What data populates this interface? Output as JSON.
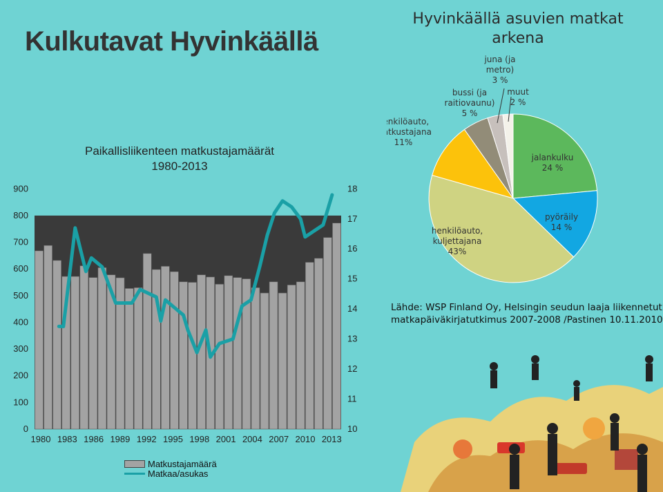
{
  "page": {
    "title": "Kulkutavat Hyvinkäällä",
    "source_lines": [
      "Lähde: WSP Finland Oy, Helsingin seudun laaja liikennetutkimus,",
      "matkapäiväkirjatutkimus 2007-2008 /Pastinen 10.11.2010"
    ]
  },
  "colors": {
    "background": "#6fd3d3",
    "plot_area": "#3a3a3a",
    "bar_fill": "#a3a3a3",
    "line": "#1aa0a6"
  },
  "chart_data": [
    {
      "type": "bar",
      "title_lines": [
        "Paikallisliikenteen matkustajamäärät",
        "1980-2013"
      ],
      "x_tick_labels": [
        "1980",
        "1983",
        "1986",
        "1989",
        "1992",
        "1995",
        "1998",
        "2001",
        "2004",
        "2007",
        "2010",
        "2013"
      ],
      "categories": [
        1980,
        1981,
        1982,
        1983,
        1984,
        1985,
        1986,
        1987,
        1988,
        1989,
        1990,
        1991,
        1992,
        1993,
        1994,
        1995,
        1996,
        1997,
        1998,
        1999,
        2000,
        2001,
        2002,
        2003,
        2004,
        2005,
        2006,
        2007,
        2008,
        2009,
        2010,
        2011,
        2012,
        2013
      ],
      "y_left_ticks": [
        0,
        100,
        200,
        300,
        400,
        500,
        600,
        700,
        800,
        900
      ],
      "y_right_ticks": [
        10,
        11,
        12,
        13,
        14,
        15,
        16,
        17,
        18
      ],
      "ylim_left": [
        0,
        900
      ],
      "ylim_right": [
        10,
        18
      ],
      "plot_top_value": 800,
      "series": [
        {
          "name": "Matkustajamäärä",
          "axis": "left",
          "values": [
            668,
            688,
            632,
            572,
            572,
            612,
            568,
            605,
            578,
            567,
            527,
            530,
            658,
            598,
            610,
            590,
            552,
            550,
            578,
            570,
            543,
            575,
            568,
            563,
            530,
            510,
            552,
            510,
            540,
            552,
            625,
            640,
            718,
            772
          ]
        },
        {
          "name": "Matkaa/asukas",
          "axis": "right",
          "x": [
            1982.2,
            1982.7,
            1984.0,
            1985.2,
            1985.8,
            1987.0,
            1988.0,
            1988.5,
            1990.3,
            1991.2,
            1993.0,
            1993.5,
            1994.0,
            1995.0,
            1996.0,
            1996.5,
            1997.5,
            1998.5,
            1999.0,
            2000.0,
            2001.5,
            2002.5,
            2003.5,
            2004.5,
            2005.3,
            2006.1,
            2007.0,
            2008.0,
            2009.0,
            2009.5,
            2010.5,
            2011.5,
            2012.5
          ],
          "y": [
            13.42,
            13.42,
            16.7,
            15.25,
            15.7,
            15.4,
            14.6,
            14.2,
            14.2,
            14.65,
            14.4,
            13.6,
            14.3,
            14.05,
            13.8,
            13.3,
            12.55,
            13.3,
            12.4,
            12.85,
            13.0,
            14.1,
            14.3,
            15.45,
            16.45,
            17.2,
            17.6,
            17.4,
            17.0,
            16.4,
            16.6,
            16.8,
            17.8
          ]
        }
      ],
      "legend": [
        "Matkustajamäärä",
        "Matkaa/asukas"
      ],
      "legend_position": "bottom-left"
    },
    {
      "type": "pie",
      "title_lines": [
        "Hyvinkäällä asuvien matkat",
        "arkena"
      ],
      "slices": [
        {
          "label_lines": [
            "jalankulku",
            "24 %"
          ],
          "value": 24,
          "color": "#5cb85c"
        },
        {
          "label_lines": [
            "pyöräily",
            "14 %"
          ],
          "value": 14,
          "color": "#12a7e2"
        },
        {
          "label_lines": [
            "henkilöauto,",
            "kuljettajana",
            "43%"
          ],
          "value": 43,
          "color": "#cfd382"
        },
        {
          "label_lines": [
            "henkilöauto,",
            "matkustajana",
            "11%"
          ],
          "value": 11,
          "color": "#fcc20b"
        },
        {
          "label_lines": [
            "bussi (ja",
            "raitiovaunu)",
            "5 %"
          ],
          "value": 5,
          "color": "#928c78"
        },
        {
          "label_lines": [
            "juna (ja",
            "metro)",
            "3 %"
          ],
          "value": 3,
          "color": "#c7c0bc"
        },
        {
          "label_lines": [
            "muut",
            "2 %"
          ],
          "value": 2,
          "color": "#f4f2ea"
        }
      ]
    }
  ]
}
